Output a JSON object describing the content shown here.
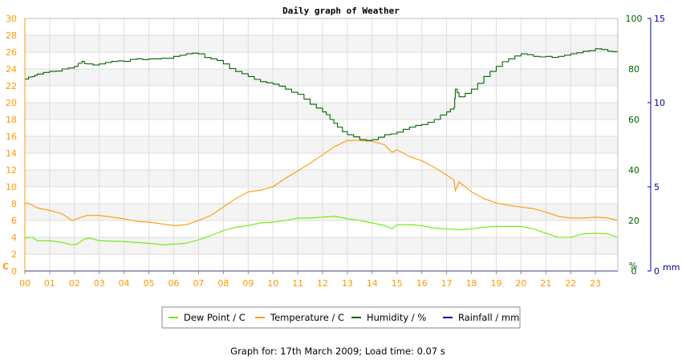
{
  "chart_data": {
    "type": "line",
    "title": "Daily graph of Weather",
    "footer": "Graph for: 17th March 2009; Load time: 0.07 s",
    "x_tick_labels": [
      "00",
      "01",
      "02",
      "03",
      "04",
      "05",
      "06",
      "07",
      "08",
      "09",
      "10",
      "11",
      "12",
      "13",
      "14",
      "15",
      "16",
      "17",
      "18",
      "19",
      "20",
      "21",
      "22",
      "23"
    ],
    "x_range_hours": [
      0,
      23.9
    ],
    "axes": {
      "left": {
        "unit": "C",
        "range": [
          0,
          30
        ],
        "ticks": [
          0,
          2,
          4,
          6,
          8,
          10,
          12,
          14,
          16,
          18,
          20,
          22,
          24,
          26,
          28,
          30
        ],
        "color": "#FF9900"
      },
      "right1": {
        "unit": "%",
        "range": [
          0,
          100
        ],
        "ticks": [
          0,
          20,
          40,
          60,
          80,
          100
        ],
        "color": "#006400"
      },
      "right2": {
        "unit": "mm",
        "range": [
          0,
          15
        ],
        "ticks": [
          0,
          5,
          10,
          15
        ],
        "color": "#0000AA"
      }
    },
    "grid": true,
    "legend_position": "bottom-center",
    "series": [
      {
        "name": "Dew Point / C",
        "axis": "left",
        "color": "#66EE00",
        "step": false,
        "points": [
          [
            0,
            3.9
          ],
          [
            0.3,
            4.0
          ],
          [
            0.5,
            3.6
          ],
          [
            1.0,
            3.6
          ],
          [
            1.5,
            3.4
          ],
          [
            1.9,
            3.1
          ],
          [
            2.1,
            3.2
          ],
          [
            2.4,
            3.8
          ],
          [
            2.6,
            3.9
          ],
          [
            3.0,
            3.6
          ],
          [
            4.0,
            3.5
          ],
          [
            5.0,
            3.3
          ],
          [
            5.6,
            3.1
          ],
          [
            6.0,
            3.2
          ],
          [
            6.5,
            3.3
          ],
          [
            7.0,
            3.7
          ],
          [
            7.5,
            4.2
          ],
          [
            8.0,
            4.8
          ],
          [
            8.5,
            5.2
          ],
          [
            9.0,
            5.4
          ],
          [
            9.5,
            5.7
          ],
          [
            10.0,
            5.8
          ],
          [
            10.5,
            6.0
          ],
          [
            11.0,
            6.3
          ],
          [
            11.5,
            6.3
          ],
          [
            12.0,
            6.4
          ],
          [
            12.5,
            6.5
          ],
          [
            13.0,
            6.2
          ],
          [
            13.5,
            6.0
          ],
          [
            14.0,
            5.7
          ],
          [
            14.5,
            5.4
          ],
          [
            14.8,
            5.0
          ],
          [
            15.0,
            5.5
          ],
          [
            15.5,
            5.5
          ],
          [
            16.0,
            5.4
          ],
          [
            16.5,
            5.1
          ],
          [
            17.0,
            5.0
          ],
          [
            17.5,
            4.9
          ],
          [
            18.0,
            5.0
          ],
          [
            18.5,
            5.2
          ],
          [
            19.0,
            5.3
          ],
          [
            19.5,
            5.3
          ],
          [
            20.0,
            5.3
          ],
          [
            20.5,
            5.0
          ],
          [
            21.0,
            4.5
          ],
          [
            21.5,
            4.0
          ],
          [
            22.0,
            4.0
          ],
          [
            22.5,
            4.4
          ],
          [
            23.0,
            4.5
          ],
          [
            23.5,
            4.4
          ],
          [
            23.9,
            4.0
          ]
        ]
      },
      {
        "name": "Temperature / C",
        "axis": "left",
        "color": "#FF9900",
        "step": false,
        "points": [
          [
            0,
            8.0
          ],
          [
            0.1,
            8.1
          ],
          [
            0.5,
            7.5
          ],
          [
            1.0,
            7.2
          ],
          [
            1.5,
            6.8
          ],
          [
            1.9,
            6.0
          ],
          [
            2.2,
            6.3
          ],
          [
            2.5,
            6.6
          ],
          [
            3.0,
            6.6
          ],
          [
            3.5,
            6.4
          ],
          [
            4.0,
            6.2
          ],
          [
            4.5,
            5.9
          ],
          [
            5.0,
            5.8
          ],
          [
            5.5,
            5.6
          ],
          [
            6.0,
            5.4
          ],
          [
            6.5,
            5.5
          ],
          [
            7.0,
            6.0
          ],
          [
            7.5,
            6.6
          ],
          [
            8.0,
            7.6
          ],
          [
            8.5,
            8.6
          ],
          [
            9.0,
            9.4
          ],
          [
            9.5,
            9.6
          ],
          [
            10.0,
            10.0
          ],
          [
            10.5,
            11.0
          ],
          [
            11.0,
            11.9
          ],
          [
            11.5,
            12.8
          ],
          [
            12.0,
            13.8
          ],
          [
            12.5,
            14.8
          ],
          [
            13.0,
            15.5
          ],
          [
            13.5,
            15.5
          ],
          [
            14.0,
            15.4
          ],
          [
            14.5,
            15.0
          ],
          [
            14.8,
            14.1
          ],
          [
            15.0,
            14.4
          ],
          [
            15.5,
            13.6
          ],
          [
            16.0,
            13.1
          ],
          [
            16.5,
            12.3
          ],
          [
            17.0,
            11.4
          ],
          [
            17.3,
            10.8
          ],
          [
            17.35,
            9.5
          ],
          [
            17.5,
            10.6
          ],
          [
            18.0,
            9.4
          ],
          [
            18.5,
            8.6
          ],
          [
            19.0,
            8.1
          ],
          [
            19.5,
            7.8
          ],
          [
            20.0,
            7.6
          ],
          [
            20.5,
            7.4
          ],
          [
            21.0,
            7.0
          ],
          [
            21.5,
            6.5
          ],
          [
            22.0,
            6.3
          ],
          [
            22.5,
            6.3
          ],
          [
            23.0,
            6.4
          ],
          [
            23.5,
            6.3
          ],
          [
            23.9,
            6.0
          ]
        ]
      },
      {
        "name": "Humidity / %",
        "axis": "right1",
        "color": "#006400",
        "step": true,
        "points": [
          [
            0,
            76
          ],
          [
            0.3,
            77
          ],
          [
            0.5,
            78
          ],
          [
            1.0,
            79
          ],
          [
            1.5,
            80
          ],
          [
            2.0,
            81
          ],
          [
            2.3,
            83
          ],
          [
            2.5,
            82
          ],
          [
            3.0,
            82
          ],
          [
            3.5,
            83
          ],
          [
            4.0,
            83
          ],
          [
            4.5,
            84
          ],
          [
            5.0,
            84
          ],
          [
            6.0,
            85
          ],
          [
            6.5,
            86
          ],
          [
            7.0,
            86
          ],
          [
            7.5,
            84
          ],
          [
            8.0,
            82
          ],
          [
            8.5,
            79
          ],
          [
            9.0,
            77
          ],
          [
            9.5,
            75
          ],
          [
            10.0,
            74
          ],
          [
            10.5,
            72
          ],
          [
            11.0,
            70
          ],
          [
            11.5,
            66
          ],
          [
            12.0,
            63
          ],
          [
            12.3,
            60
          ],
          [
            12.6,
            57
          ],
          [
            13.0,
            54
          ],
          [
            13.5,
            52
          ],
          [
            14.0,
            52
          ],
          [
            14.5,
            54
          ],
          [
            15.0,
            55
          ],
          [
            15.5,
            57
          ],
          [
            16.0,
            58
          ],
          [
            16.5,
            60
          ],
          [
            17.0,
            63
          ],
          [
            17.3,
            65
          ],
          [
            17.35,
            72
          ],
          [
            17.5,
            69
          ],
          [
            18.0,
            72
          ],
          [
            18.5,
            77
          ],
          [
            19.0,
            81
          ],
          [
            19.5,
            84
          ],
          [
            20.0,
            86
          ],
          [
            20.5,
            85
          ],
          [
            21.0,
            85
          ],
          [
            21.5,
            85
          ],
          [
            22.0,
            86
          ],
          [
            22.5,
            87
          ],
          [
            23.0,
            88
          ],
          [
            23.5,
            87
          ],
          [
            23.9,
            87
          ]
        ]
      },
      {
        "name": "Rainfall / mm",
        "axis": "right2",
        "color": "#0000AA",
        "step": false,
        "points": [
          [
            0,
            0
          ],
          [
            23.9,
            0
          ]
        ]
      }
    ]
  }
}
